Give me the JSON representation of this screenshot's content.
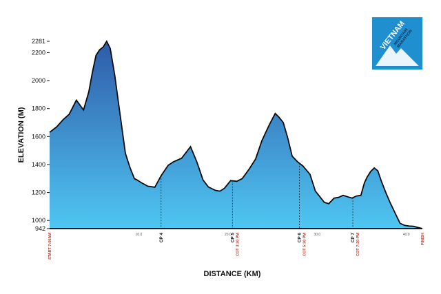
{
  "chart_data": {
    "type": "area",
    "title": "",
    "xlabel": "DISTANCE (KM)",
    "ylabel": "ELEVATION (M)",
    "xlim": [
      0,
      41.8
    ],
    "ylim": [
      942,
      2281
    ],
    "y_ticks": [
      942,
      1000,
      1200,
      1400,
      1600,
      1800,
      2000,
      2200,
      2281
    ],
    "x_ticks": [
      {
        "value": 10,
        "label": "10.0"
      },
      {
        "value": 20,
        "label": "20.0"
      },
      {
        "value": 30,
        "label": "30.0"
      },
      {
        "value": 40,
        "label": "40.0"
      }
    ],
    "series": [
      {
        "name": "Elevation",
        "x": [
          0,
          0.8,
          1.5,
          2.2,
          3.0,
          3.8,
          4.4,
          4.8,
          5.2,
          5.6,
          6.0,
          6.4,
          6.8,
          7.3,
          7.9,
          8.5,
          9.0,
          9.5,
          9.8,
          10.3,
          11.0,
          11.8,
          12.5,
          13.3,
          13.9,
          14.8,
          15.8,
          16.5,
          17.2,
          17.8,
          18.6,
          19.1,
          19.6,
          20.3,
          21.0,
          21.6,
          22.4,
          23.1,
          23.8,
          24.6,
          25.3,
          25.7,
          26.2,
          26.7,
          27.2,
          27.8,
          28.4,
          29.2,
          29.8,
          30.3,
          30.8,
          31.3,
          31.9,
          32.4,
          32.9,
          33.4,
          33.9,
          34.4,
          34.9,
          35.3,
          35.6,
          36.0,
          36.4,
          36.8,
          37.2,
          37.7,
          38.2,
          38.8,
          39.3,
          39.8,
          40.3,
          40.8,
          41.3,
          41.8
        ],
        "values": [
          1630,
          1670,
          1720,
          1760,
          1860,
          1790,
          1920,
          2060,
          2180,
          2220,
          2240,
          2281,
          2230,
          2040,
          1760,
          1480,
          1380,
          1300,
          1290,
          1270,
          1245,
          1238,
          1320,
          1395,
          1420,
          1445,
          1528,
          1420,
          1290,
          1240,
          1215,
          1210,
          1230,
          1285,
          1280,
          1300,
          1370,
          1440,
          1570,
          1680,
          1765,
          1740,
          1700,
          1590,
          1460,
          1420,
          1390,
          1330,
          1210,
          1170,
          1130,
          1120,
          1160,
          1165,
          1180,
          1170,
          1160,
          1175,
          1180,
          1270,
          1310,
          1350,
          1375,
          1355,
          1280,
          1200,
          1125,
          1045,
          980,
          965,
          960,
          958,
          950,
          942
        ]
      }
    ],
    "markers": [
      {
        "x": 0,
        "label": "",
        "note": "START 7:00AM"
      },
      {
        "x": 12.5,
        "label": "CP 4",
        "note": ""
      },
      {
        "x": 20.5,
        "label": "CP 5",
        "note": "COT 3:30 PM"
      },
      {
        "x": 28.0,
        "label": "CP 6",
        "note": "COT 5:30 PM"
      },
      {
        "x": 34.0,
        "label": "CP 7",
        "note": "COT 7:30 PM"
      },
      {
        "x": 41.8,
        "label": "",
        "note": "FINISH"
      }
    ]
  },
  "logo": {
    "line1": "VIETNAM",
    "line2": "MOUNTAIN",
    "line3": "MARATHON",
    "bg_color": "#1f8fd0"
  },
  "colors": {
    "fill_top": "#3b6bb5",
    "fill_bottom": "#55c7f0",
    "note_red": "#c0392b"
  }
}
